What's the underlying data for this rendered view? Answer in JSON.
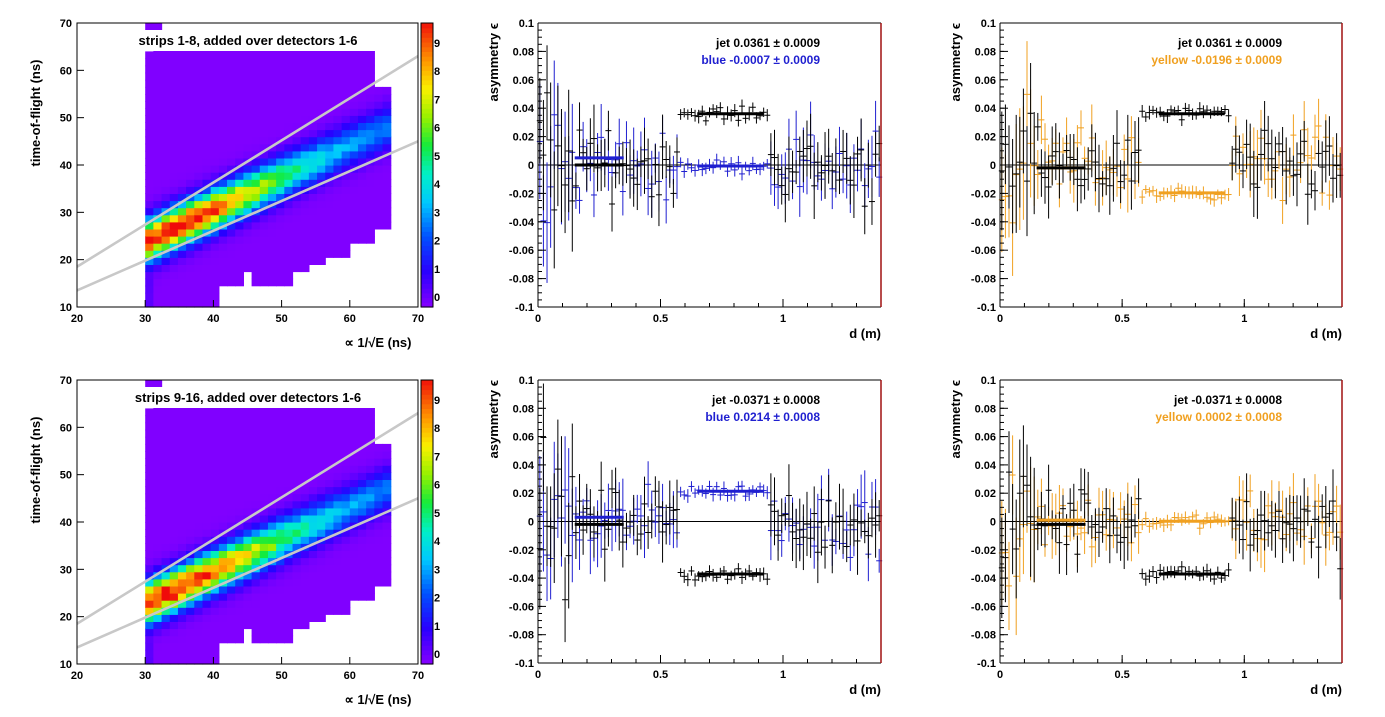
{
  "colors": {
    "blue": "#1f1fd0",
    "yellow": "#f0a020",
    "jet": "#000000",
    "frame_right": "#a01010",
    "band_line": "#c8c8c8",
    "background_fill": "#8000ff"
  },
  "chart_data": [
    {
      "type": "heatmap",
      "title": "strips 1-8, added over detectors 1-6",
      "xlabel": "∝ 1/√E (ns)",
      "ylabel": "time-of-flight (ns)",
      "xlim": [
        20,
        70
      ],
      "ylim": [
        10,
        70
      ],
      "x_ticks": [
        "20",
        "30",
        "40",
        "50",
        "60",
        "70"
      ],
      "y_ticks": [
        "10",
        "20",
        "30",
        "40",
        "50",
        "60",
        "70"
      ],
      "colorbar_ticks": [
        "9",
        "8",
        "7",
        "6",
        "5",
        "4",
        "3",
        "2",
        "1",
        "0"
      ],
      "band_lines": [
        {
          "x1": 20,
          "y1": 18.5,
          "x2": 70,
          "y2": 63
        },
        {
          "x1": 20,
          "y1": 13.5,
          "x2": 70,
          "y2": 45
        }
      ],
      "populated_region": {
        "x_min": 30,
        "x_max": 66,
        "y_min": 10,
        "y_max": 70
      },
      "peak": {
        "x": 34,
        "y": 26.5
      }
    },
    {
      "type": "scatter",
      "xlabel": "d (m)",
      "ylabel": "asymmetry ϵ",
      "xlim": [
        0,
        1.4
      ],
      "ylim": [
        -0.1,
        0.1
      ],
      "x_ticks": [
        "0",
        "0.5",
        "1"
      ],
      "y_ticks": [
        "0.1",
        "0.08",
        "0.06",
        "0.04",
        "0.02",
        "0",
        "-0.02",
        "-0.04",
        "-0.06",
        "-0.08",
        "-0.1"
      ],
      "legend": [
        {
          "label": "jet  0.0361 ± 0.0009",
          "color": "#000000"
        },
        {
          "label": "blue -0.0007 ± 0.0009",
          "color": "#1f1fd0"
        }
      ],
      "series": [
        {
          "name": "jet",
          "fit_value": 0.0361,
          "fit_range": [
            0.65,
            0.92
          ],
          "color": "#000000"
        },
        {
          "name": "blue",
          "fit_value": -0.0007,
          "fit_range": [
            0.65,
            0.92
          ],
          "color": "#1f1fd0"
        }
      ],
      "side_fits": [
        {
          "value": 0.005,
          "range": [
            0.15,
            0.35
          ],
          "color": "#1f1fd0"
        },
        {
          "value": 0.0,
          "range": [
            0.15,
            0.35
          ],
          "color": "#000000"
        }
      ]
    },
    {
      "type": "scatter",
      "xlabel": "d (m)",
      "ylabel": "asymmetry ϵ",
      "xlim": [
        0,
        1.4
      ],
      "ylim": [
        -0.1,
        0.1
      ],
      "x_ticks": [
        "0",
        "0.5",
        "1"
      ],
      "y_ticks": [
        "0.1",
        "0.08",
        "0.06",
        "0.04",
        "0.02",
        "0",
        "-0.02",
        "-0.04",
        "-0.06",
        "-0.08",
        "-0.1"
      ],
      "legend": [
        {
          "label": "jet  0.0361 ± 0.0009",
          "color": "#000000"
        },
        {
          "label": "yellow -0.0196 ± 0.0009",
          "color": "#f0a020"
        }
      ],
      "series": [
        {
          "name": "jet",
          "fit_value": 0.0361,
          "fit_range": [
            0.65,
            0.92
          ],
          "color": "#000000"
        },
        {
          "name": "yellow",
          "fit_value": -0.0196,
          "fit_range": [
            0.65,
            0.92
          ],
          "color": "#f0a020"
        }
      ],
      "side_fits": [
        {
          "value": -0.002,
          "range": [
            0.15,
            0.35
          ],
          "color": "#f0a020"
        },
        {
          "value": -0.002,
          "range": [
            0.15,
            0.35
          ],
          "color": "#000000"
        }
      ]
    },
    {
      "type": "heatmap",
      "title": "strips 9-16, added over detectors 1-6",
      "xlabel": "∝ 1/√E (ns)",
      "ylabel": "time-of-flight (ns)",
      "xlim": [
        20,
        70
      ],
      "ylim": [
        10,
        70
      ],
      "x_ticks": [
        "20",
        "30",
        "40",
        "50",
        "60",
        "70"
      ],
      "y_ticks": [
        "10",
        "20",
        "30",
        "40",
        "50",
        "60",
        "70"
      ],
      "colorbar_ticks": [
        "9",
        "8",
        "7",
        "6",
        "5",
        "4",
        "3",
        "2",
        "1",
        "0"
      ],
      "band_lines": [
        {
          "x1": 20,
          "y1": 18.5,
          "x2": 70,
          "y2": 63
        },
        {
          "x1": 20,
          "y1": 13.5,
          "x2": 70,
          "y2": 45
        }
      ],
      "populated_region": {
        "x_min": 30,
        "x_max": 66,
        "y_min": 10,
        "y_max": 70
      },
      "peak": {
        "x": 34,
        "y": 25.5
      }
    },
    {
      "type": "scatter",
      "xlabel": "d (m)",
      "ylabel": "asymmetry ϵ",
      "xlim": [
        0,
        1.4
      ],
      "ylim": [
        -0.1,
        0.1
      ],
      "x_ticks": [
        "0",
        "0.5",
        "1"
      ],
      "y_ticks": [
        "0.1",
        "0.08",
        "0.06",
        "0.04",
        "0.02",
        "0",
        "-0.02",
        "-0.04",
        "-0.06",
        "-0.08",
        "-0.1"
      ],
      "legend": [
        {
          "label": "jet -0.0371 ± 0.0008",
          "color": "#000000"
        },
        {
          "label": "blue  0.0214 ± 0.0008",
          "color": "#1f1fd0"
        }
      ],
      "series": [
        {
          "name": "jet",
          "fit_value": -0.0371,
          "fit_range": [
            0.65,
            0.92
          ],
          "color": "#000000"
        },
        {
          "name": "blue",
          "fit_value": 0.0214,
          "fit_range": [
            0.65,
            0.92
          ],
          "color": "#1f1fd0"
        }
      ],
      "side_fits": [
        {
          "value": 0.003,
          "range": [
            0.15,
            0.35
          ],
          "color": "#1f1fd0"
        },
        {
          "value": -0.002,
          "range": [
            0.15,
            0.35
          ],
          "color": "#000000"
        }
      ]
    },
    {
      "type": "scatter",
      "xlabel": "d (m)",
      "ylabel": "asymmetry ϵ",
      "xlim": [
        0,
        1.4
      ],
      "ylim": [
        -0.1,
        0.1
      ],
      "x_ticks": [
        "0",
        "0.5",
        "1"
      ],
      "y_ticks": [
        "0.1",
        "0.08",
        "0.06",
        "0.04",
        "0.02",
        "0",
        "-0.02",
        "-0.04",
        "-0.06",
        "-0.08",
        "-0.1"
      ],
      "legend": [
        {
          "label": "jet -0.0371 ± 0.0008",
          "color": "#000000"
        },
        {
          "label": "yellow  0.0002 ± 0.0008",
          "color": "#f0a020"
        }
      ],
      "series": [
        {
          "name": "jet",
          "fit_value": -0.0371,
          "fit_range": [
            0.65,
            0.92
          ],
          "color": "#000000"
        },
        {
          "name": "yellow",
          "fit_value": 0.0002,
          "fit_range": [
            0.65,
            0.92
          ],
          "color": "#f0a020"
        }
      ],
      "side_fits": [
        {
          "value": 0.001,
          "range": [
            0.15,
            0.35
          ],
          "color": "#f0a020"
        },
        {
          "value": -0.002,
          "range": [
            0.15,
            0.35
          ],
          "color": "#000000"
        }
      ]
    }
  ]
}
